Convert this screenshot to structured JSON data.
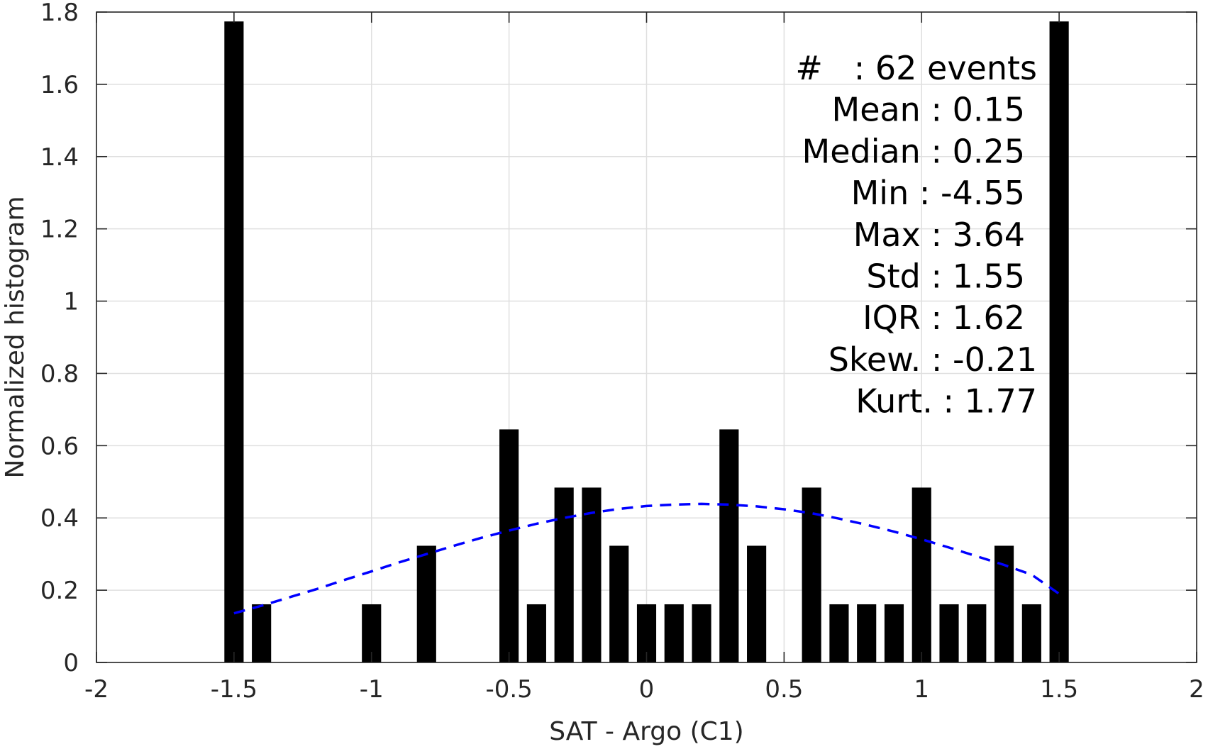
{
  "chart_data": {
    "type": "bar",
    "title": "",
    "xlabel": "SAT - Argo (C1)",
    "ylabel": "Normalized histogram",
    "xlim": [
      -2,
      2
    ],
    "ylim": [
      0,
      1.8
    ],
    "xticks": [
      -2,
      -1.5,
      -1,
      -0.5,
      0,
      0.5,
      1,
      1.5,
      2
    ],
    "xtick_labels": [
      "-2",
      "-1.5",
      "-1",
      "-0.5",
      "0",
      "0.5",
      "1",
      "1.5",
      "2"
    ],
    "yticks": [
      0,
      0.2,
      0.4,
      0.6,
      0.8,
      1,
      1.2,
      1.4,
      1.6,
      1.8
    ],
    "ytick_labels": [
      "0",
      "0.2",
      "0.4",
      "0.6",
      "0.8",
      "1",
      "1.2",
      "1.4",
      "1.6",
      "1.8"
    ],
    "grid": true,
    "bar_color": "#000000",
    "bar_width": 0.07,
    "bars": [
      {
        "x": -1.5,
        "y": 1.774
      },
      {
        "x": -1.4,
        "y": 0.161
      },
      {
        "x": -1.0,
        "y": 0.161
      },
      {
        "x": -0.8,
        "y": 0.323
      },
      {
        "x": -0.5,
        "y": 0.645
      },
      {
        "x": -0.4,
        "y": 0.161
      },
      {
        "x": -0.3,
        "y": 0.484
      },
      {
        "x": -0.2,
        "y": 0.484
      },
      {
        "x": -0.1,
        "y": 0.323
      },
      {
        "x": 0.0,
        "y": 0.161
      },
      {
        "x": 0.1,
        "y": 0.161
      },
      {
        "x": 0.2,
        "y": 0.161
      },
      {
        "x": 0.3,
        "y": 0.645
      },
      {
        "x": 0.4,
        "y": 0.323
      },
      {
        "x": 0.6,
        "y": 0.484
      },
      {
        "x": 0.7,
        "y": 0.161
      },
      {
        "x": 0.8,
        "y": 0.161
      },
      {
        "x": 0.9,
        "y": 0.161
      },
      {
        "x": 1.0,
        "y": 0.484
      },
      {
        "x": 1.1,
        "y": 0.161
      },
      {
        "x": 1.2,
        "y": 0.161
      },
      {
        "x": 1.3,
        "y": 0.323
      },
      {
        "x": 1.4,
        "y": 0.161
      },
      {
        "x": 1.5,
        "y": 1.774
      }
    ],
    "fit_curve": {
      "style": "dashed",
      "color": "#0000ff",
      "x": [
        -1.5,
        -1.4,
        -1.3,
        -1.2,
        -1.1,
        -1.0,
        -0.9,
        -0.8,
        -0.7,
        -0.6,
        -0.5,
        -0.4,
        -0.3,
        -0.2,
        -0.1,
        0.0,
        0.1,
        0.2,
        0.3,
        0.4,
        0.5,
        0.6,
        0.7,
        0.8,
        0.9,
        1.0,
        1.1,
        1.2,
        1.3,
        1.4,
        1.5
      ],
      "y": [
        0.136,
        0.157,
        0.18,
        0.203,
        0.228,
        0.252,
        0.277,
        0.3,
        0.323,
        0.345,
        0.365,
        0.384,
        0.4,
        0.414,
        0.425,
        0.433,
        0.437,
        0.439,
        0.437,
        0.432,
        0.424,
        0.413,
        0.398,
        0.381,
        0.362,
        0.341,
        0.318,
        0.294,
        0.27,
        0.243,
        0.19
      ]
    },
    "stats": [
      "#   : 62 events",
      "Mean : 0.15",
      "Median : 0.25",
      "Min : -4.55",
      "Max : 3.64",
      "Std : 1.55",
      "IQR : 1.62",
      "Skew. : -0.21",
      "Kurt. : 1.77"
    ]
  }
}
